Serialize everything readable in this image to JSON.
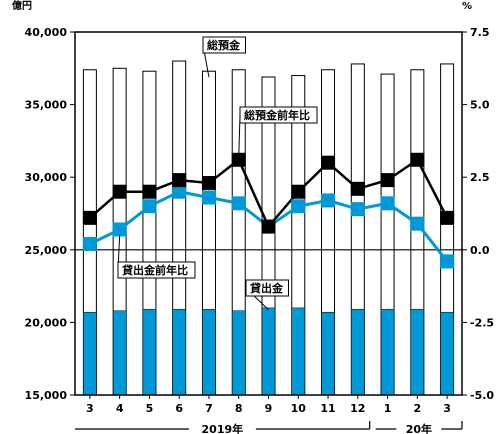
{
  "chart_data": {
    "type": "bar",
    "title": "",
    "categories": [
      "3",
      "4",
      "5",
      "6",
      "7",
      "8",
      "9",
      "10",
      "11",
      "12",
      "1",
      "2",
      "3"
    ],
    "year_labels": [
      "2019年",
      "20年"
    ],
    "left_axis": {
      "unit": "億円",
      "ylim": [
        15000,
        40000
      ],
      "ticks": [
        15000,
        20000,
        25000,
        30000,
        35000,
        40000
      ],
      "tick_labels": [
        "15,000",
        "20,000",
        "25,000",
        "30,000",
        "35,000",
        "40,000"
      ]
    },
    "right_axis": {
      "unit": "%",
      "ylim": [
        -5.0,
        7.5
      ],
      "ticks": [
        -5.0,
        -2.5,
        0.0,
        2.5,
        5.0,
        7.5
      ],
      "tick_labels": [
        "-5.0",
        "-2.5",
        "0.0",
        "2.5",
        "5.0",
        "7.5"
      ]
    },
    "series": [
      {
        "name": "総預金",
        "kind": "bar",
        "axis": "left",
        "fill": "#ffffff",
        "stroke": "#000000",
        "values": [
          37400,
          37500,
          37300,
          38000,
          37300,
          37400,
          36900,
          37000,
          37400,
          37800,
          37100,
          37400,
          37800
        ]
      },
      {
        "name": "貸出金",
        "kind": "bar",
        "axis": "left",
        "fill": "#0099d8",
        "stroke": "#000000",
        "values": [
          20700,
          20800,
          20900,
          20900,
          20900,
          20800,
          21000,
          21000,
          20700,
          20900,
          20900,
          20900,
          20700
        ]
      },
      {
        "name": "総預金前年比",
        "kind": "line",
        "axis": "right",
        "color": "#000000",
        "values": [
          1.1,
          2.0,
          2.0,
          2.4,
          2.3,
          3.1,
          0.8,
          2.0,
          3.0,
          2.1,
          2.4,
          3.1,
          1.1
        ]
      },
      {
        "name": "貸出金前年比",
        "kind": "line",
        "axis": "right",
        "color": "#0099d8",
        "values": [
          0.2,
          0.7,
          1.5,
          2.0,
          1.8,
          1.6,
          0.8,
          1.5,
          1.7,
          1.4,
          1.6,
          0.9,
          -0.4
        ]
      }
    ],
    "legend": "callouts-in-plot",
    "grid": false
  }
}
